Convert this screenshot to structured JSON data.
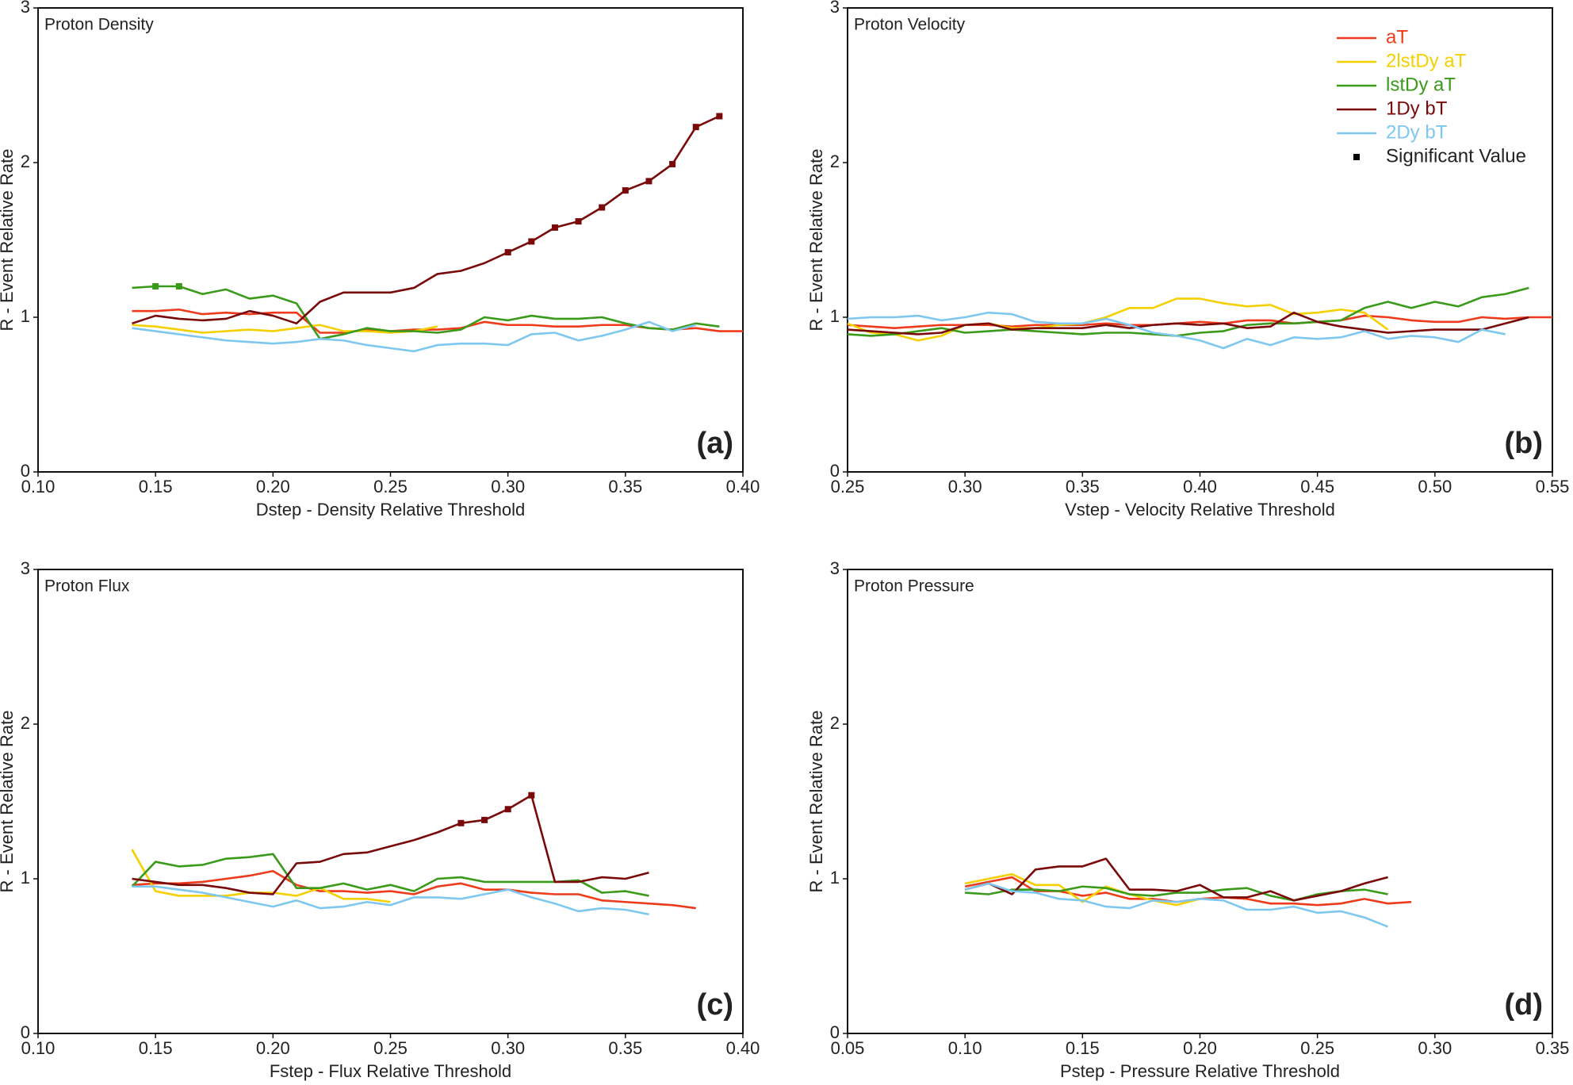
{
  "chart_data": [
    {
      "type": "line",
      "title": "Proton Density",
      "panel_label": "(a)",
      "x_label": "Dstep - Density Relative Threshold",
      "y_label": "R - Event Relative Rate",
      "xlim": [
        0.1,
        0.4
      ],
      "xticks": [
        {
          "value": 0.1,
          "label": "0.10"
        },
        0.15,
        {
          "value": 0.2,
          "label": "0.20"
        },
        0.25,
        {
          "value": 0.3,
          "label": "0.30"
        },
        0.35,
        {
          "value": 0.4,
          "label": "0.40"
        }
      ],
      "ylim": [
        0,
        3
      ],
      "yticks": [
        0,
        1,
        2,
        3
      ],
      "x": [
        0.14,
        0.15,
        0.16,
        0.17,
        0.18,
        0.19,
        0.2,
        0.21,
        0.22,
        0.23,
        0.24,
        0.25,
        0.26,
        0.27,
        0.28,
        0.29,
        0.3,
        0.31,
        0.32,
        0.33,
        0.34,
        0.35,
        0.36,
        0.37,
        0.38,
        0.39,
        0.4
      ],
      "series": [
        {
          "name": "aT",
          "color": "#ee3b1b",
          "values": [
            1.04,
            1.04,
            1.05,
            1.02,
            1.03,
            1.02,
            1.03,
            1.03,
            0.9,
            0.9,
            0.92,
            0.91,
            0.92,
            0.92,
            0.93,
            0.97,
            0.95,
            0.95,
            0.94,
            0.94,
            0.95,
            0.95,
            0.93,
            0.92,
            0.93,
            0.91,
            0.91
          ]
        },
        {
          "name": "2lstDy aT",
          "color": "#f5d000",
          "values": [
            0.95,
            0.94,
            0.92,
            0.9,
            0.91,
            0.92,
            0.91,
            0.93,
            0.95,
            0.91,
            0.91,
            0.9,
            0.91,
            0.94,
            null,
            null,
            null,
            null,
            null,
            null,
            null,
            null,
            null,
            null,
            null,
            null,
            null
          ]
        },
        {
          "name": "lstDy aT",
          "color": "#3a9a1a",
          "values": [
            1.19,
            1.2,
            1.2,
            1.15,
            1.18,
            1.12,
            1.14,
            1.09,
            0.86,
            0.89,
            0.93,
            0.91,
            0.91,
            0.9,
            0.92,
            1.0,
            0.98,
            1.01,
            0.99,
            0.99,
            1.0,
            0.96,
            0.93,
            0.92,
            0.96,
            0.94,
            null
          ],
          "significant_x": [
            0.15,
            0.16
          ]
        },
        {
          "name": "1Dy bT",
          "color": "#7a0a0a",
          "values": [
            0.96,
            1.01,
            0.99,
            0.98,
            0.99,
            1.04,
            1.01,
            0.96,
            1.1,
            1.16,
            1.16,
            1.16,
            1.19,
            1.28,
            1.3,
            1.35,
            1.42,
            1.49,
            1.58,
            1.62,
            1.71,
            1.82,
            1.88,
            1.99,
            2.23,
            2.3,
            null
          ],
          "significant_x": [
            0.3,
            0.31,
            0.32,
            0.33,
            0.34,
            0.35,
            0.36,
            0.37,
            0.38,
            0.39
          ]
        },
        {
          "name": "2Dy bT",
          "color": "#7ec8ef",
          "values": [
            0.93,
            0.91,
            0.89,
            0.87,
            0.85,
            0.84,
            0.83,
            0.84,
            0.86,
            0.85,
            0.82,
            0.8,
            0.78,
            0.82,
            0.83,
            0.83,
            0.82,
            0.89,
            0.9,
            0.85,
            0.88,
            0.92,
            0.97,
            0.91,
            0.95,
            null,
            null
          ]
        }
      ]
    },
    {
      "type": "line",
      "title": "Proton Velocity",
      "panel_label": "(b)",
      "x_label": "Vstep - Velocity Relative Threshold",
      "y_label": "R - Event Relative Rate",
      "legend": "upper right",
      "legend_marker_label": "Significant Value",
      "xlim": [
        0.25,
        0.55
      ],
      "xticks": [
        0.25,
        {
          "value": 0.3,
          "label": "0.30"
        },
        0.35,
        {
          "value": 0.4,
          "label": "0.40"
        },
        0.45,
        {
          "value": 0.5,
          "label": "0.50"
        },
        0.55
      ],
      "ylim": [
        0,
        3
      ],
      "yticks": [
        0,
        1,
        2,
        3
      ],
      "x": [
        0.25,
        0.26,
        0.27,
        0.28,
        0.29,
        0.3,
        0.31,
        0.32,
        0.33,
        0.34,
        0.35,
        0.36,
        0.37,
        0.38,
        0.39,
        0.4,
        0.41,
        0.42,
        0.43,
        0.44,
        0.45,
        0.46,
        0.47,
        0.48,
        0.49,
        0.5,
        0.51,
        0.52,
        0.53,
        0.54,
        0.55
      ],
      "series": [
        {
          "name": "aT",
          "color": "#ee3b1b",
          "values": [
            0.95,
            0.94,
            0.93,
            0.94,
            0.95,
            0.95,
            0.95,
            0.94,
            0.95,
            0.95,
            0.95,
            0.96,
            0.95,
            0.95,
            0.96,
            0.97,
            0.96,
            0.98,
            0.98,
            0.96,
            0.97,
            0.98,
            1.01,
            1.0,
            0.98,
            0.97,
            0.97,
            1.0,
            0.99,
            1.0,
            1.0
          ]
        },
        {
          "name": "2lstDy aT",
          "color": "#f5d000",
          "values": [
            0.96,
            0.9,
            0.89,
            0.85,
            0.88,
            0.95,
            0.96,
            0.93,
            0.93,
            0.95,
            0.96,
            1.0,
            1.06,
            1.06,
            1.12,
            1.12,
            1.09,
            1.07,
            1.08,
            1.02,
            1.03,
            1.05,
            1.03,
            0.92,
            null,
            null,
            null,
            null,
            null,
            null,
            null
          ]
        },
        {
          "name": "lstDy aT",
          "color": "#3a9a1a",
          "values": [
            0.89,
            0.88,
            0.89,
            0.91,
            0.93,
            0.9,
            0.91,
            0.92,
            0.91,
            0.9,
            0.89,
            0.9,
            0.9,
            0.89,
            0.88,
            0.9,
            0.91,
            0.95,
            0.96,
            0.96,
            0.97,
            0.98,
            1.06,
            1.1,
            1.06,
            1.1,
            1.07,
            1.13,
            1.15,
            1.19,
            null
          ]
        },
        {
          "name": "1Dy bT",
          "color": "#7a0a0a",
          "values": [
            0.92,
            0.91,
            0.9,
            0.89,
            0.9,
            0.95,
            0.96,
            0.92,
            0.93,
            0.93,
            0.93,
            0.95,
            0.93,
            0.95,
            0.96,
            0.95,
            0.96,
            0.93,
            0.94,
            1.03,
            0.97,
            0.94,
            0.92,
            0.9,
            0.91,
            0.92,
            0.92,
            0.92,
            0.96,
            1.0,
            null
          ]
        },
        {
          "name": "2Dy bT",
          "color": "#7ec8ef",
          "values": [
            0.99,
            1.0,
            1.0,
            1.01,
            0.98,
            1.0,
            1.03,
            1.02,
            0.97,
            0.96,
            0.96,
            0.99,
            0.95,
            0.9,
            0.88,
            0.85,
            0.8,
            0.86,
            0.82,
            0.87,
            0.86,
            0.87,
            0.91,
            0.86,
            0.88,
            0.87,
            0.84,
            0.92,
            0.89,
            null,
            null
          ]
        }
      ]
    },
    {
      "type": "line",
      "title": "Proton Flux",
      "panel_label": "(c)",
      "x_label": "Fstep - Flux Relative Threshold",
      "y_label": "R - Event Relative Rate",
      "xlim": [
        0.1,
        0.4
      ],
      "xticks": [
        {
          "value": 0.1,
          "label": "0.10"
        },
        0.15,
        {
          "value": 0.2,
          "label": "0.20"
        },
        0.25,
        {
          "value": 0.3,
          "label": "0.30"
        },
        0.35,
        {
          "value": 0.4,
          "label": "0.40"
        }
      ],
      "ylim": [
        0,
        3
      ],
      "yticks": [
        0,
        1,
        2,
        3
      ],
      "x": [
        0.14,
        0.15,
        0.16,
        0.17,
        0.18,
        0.19,
        0.2,
        0.21,
        0.22,
        0.23,
        0.24,
        0.25,
        0.26,
        0.27,
        0.28,
        0.29,
        0.3,
        0.31,
        0.32,
        0.33,
        0.34,
        0.35,
        0.36,
        0.37,
        0.38
      ],
      "series": [
        {
          "name": "aT",
          "color": "#ee3b1b",
          "values": [
            0.96,
            0.97,
            0.97,
            0.98,
            1.0,
            1.02,
            1.05,
            0.96,
            0.92,
            0.92,
            0.91,
            0.92,
            0.9,
            0.95,
            0.97,
            0.93,
            0.93,
            0.91,
            0.9,
            0.9,
            0.86,
            0.85,
            0.84,
            0.83,
            0.81
          ]
        },
        {
          "name": "2lstDy aT",
          "color": "#f5d000",
          "values": [
            1.19,
            0.92,
            0.89,
            0.89,
            0.89,
            0.91,
            0.91,
            0.89,
            0.94,
            0.87,
            0.87,
            0.85,
            null,
            null,
            null,
            null,
            null,
            null,
            null,
            null,
            null,
            null,
            null,
            null,
            null
          ]
        },
        {
          "name": "lstDy aT",
          "color": "#3a9a1a",
          "values": [
            0.95,
            1.11,
            1.08,
            1.09,
            1.13,
            1.14,
            1.16,
            0.94,
            0.94,
            0.97,
            0.93,
            0.96,
            0.92,
            1.0,
            1.01,
            0.98,
            0.98,
            0.98,
            0.98,
            0.99,
            0.91,
            0.92,
            0.89,
            null,
            null
          ]
        },
        {
          "name": "1Dy bT",
          "color": "#7a0a0a",
          "values": [
            1.0,
            0.98,
            0.96,
            0.96,
            0.94,
            0.91,
            0.9,
            1.1,
            1.11,
            1.16,
            1.17,
            1.21,
            1.25,
            1.3,
            1.36,
            1.38,
            1.45,
            1.54,
            0.98,
            0.98,
            1.01,
            1.0,
            1.04,
            null,
            null
          ],
          "significant_x": [
            0.28,
            0.29,
            0.3,
            0.31
          ]
        },
        {
          "name": "2Dy bT",
          "color": "#7ec8ef",
          "values": [
            0.95,
            0.95,
            0.93,
            0.91,
            0.88,
            0.85,
            0.82,
            0.86,
            0.81,
            0.82,
            0.85,
            0.83,
            0.88,
            0.88,
            0.87,
            0.9,
            0.93,
            0.88,
            0.84,
            0.79,
            0.81,
            0.8,
            0.77,
            null,
            null
          ]
        }
      ]
    },
    {
      "type": "line",
      "title": "Proton Pressure",
      "panel_label": "(d)",
      "x_label": "Pstep - Pressure Relative Threshold",
      "y_label": "R - Event Relative Rate",
      "xlim": [
        0.05,
        0.35
      ],
      "xticks": [
        0.05,
        {
          "value": 0.1,
          "label": "0.10"
        },
        0.15,
        {
          "value": 0.2,
          "label": "0.20"
        },
        0.25,
        {
          "value": 0.3,
          "label": "0.30"
        },
        0.35
      ],
      "ylim": [
        0,
        3
      ],
      "yticks": [
        0,
        1,
        2,
        3
      ],
      "x": [
        0.1,
        0.11,
        0.12,
        0.13,
        0.14,
        0.15,
        0.16,
        0.17,
        0.18,
        0.19,
        0.2,
        0.21,
        0.22,
        0.23,
        0.24,
        0.25,
        0.26,
        0.27,
        0.28,
        0.29
      ],
      "series": [
        {
          "name": "aT",
          "color": "#ee3b1b",
          "values": [
            0.95,
            0.98,
            1.01,
            0.92,
            0.92,
            0.89,
            0.91,
            0.87,
            0.87,
            0.85,
            0.87,
            0.88,
            0.87,
            0.84,
            0.84,
            0.83,
            0.84,
            0.87,
            0.84,
            0.85
          ]
        },
        {
          "name": "2lstDy aT",
          "color": "#f5d000",
          "values": [
            0.97,
            1.0,
            1.03,
            0.96,
            0.96,
            0.85,
            0.95,
            0.9,
            0.86,
            0.83,
            0.87,
            null,
            null,
            null,
            null,
            null,
            null,
            null,
            null,
            null
          ]
        },
        {
          "name": "lstDy aT",
          "color": "#3a9a1a",
          "values": [
            0.91,
            0.9,
            0.93,
            0.93,
            0.92,
            0.95,
            0.94,
            0.9,
            0.89,
            0.91,
            0.91,
            0.93,
            0.94,
            0.89,
            0.86,
            0.9,
            0.92,
            0.93,
            0.9,
            null
          ]
        },
        {
          "name": "1Dy bT",
          "color": "#7a0a0a",
          "values": [
            0.93,
            0.97,
            0.9,
            1.06,
            1.08,
            1.08,
            1.13,
            0.93,
            0.93,
            0.92,
            0.96,
            0.88,
            0.88,
            0.92,
            0.86,
            0.89,
            0.92,
            0.97,
            1.01,
            null
          ]
        },
        {
          "name": "2Dy bT",
          "color": "#7ec8ef",
          "values": [
            0.93,
            0.97,
            0.92,
            0.91,
            0.87,
            0.86,
            0.82,
            0.81,
            0.86,
            0.85,
            0.87,
            0.86,
            0.8,
            0.8,
            0.82,
            0.78,
            0.79,
            0.75,
            0.69,
            null
          ]
        }
      ]
    }
  ]
}
